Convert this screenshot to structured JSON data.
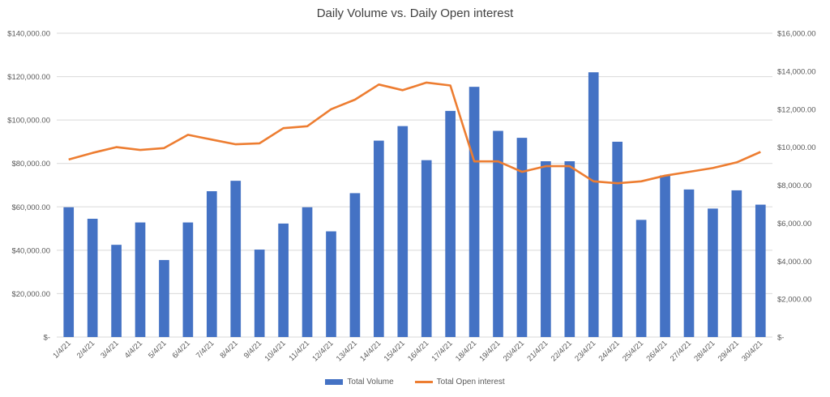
{
  "chart_data": {
    "type": "bar",
    "title": "Daily Volume vs. Daily Open interest",
    "categories": [
      "1/4/21",
      "2/4/21",
      "3/4/21",
      "4/4/21",
      "5/4/21",
      "6/4/21",
      "7/4/21",
      "8/4/21",
      "9/4/21",
      "10/4/21",
      "11/4/21",
      "12/4/21",
      "13/4/21",
      "14/4/21",
      "15/4/21",
      "16/4/21",
      "17/4/21",
      "18/4/21",
      "19/4/21",
      "20/4/21",
      "21/4/21",
      "22/4/21",
      "23/4/21",
      "24/4/21",
      "25/4/21",
      "26/4/21",
      "27/4/21",
      "28/4/21",
      "29/4/21",
      "30/4/21"
    ],
    "series": [
      {
        "name": "Total Volume",
        "type": "bar",
        "axis": "left",
        "color": "#4472C4",
        "values": [
          59800,
          54500,
          42500,
          52800,
          35500,
          52800,
          67200,
          72000,
          40300,
          52300,
          59800,
          48700,
          66300,
          90500,
          97200,
          81500,
          104200,
          115300,
          95000,
          91800,
          81000,
          81000,
          122000,
          90000,
          54000,
          74500,
          68000,
          59200,
          67600,
          61000
        ]
      },
      {
        "name": "Total Open interest",
        "type": "line",
        "axis": "right",
        "color": "#ED7D31",
        "values": [
          9350,
          9700,
          10000,
          9850,
          9950,
          10650,
          10400,
          10150,
          10200,
          11000,
          11100,
          12000,
          12500,
          13300,
          13000,
          13400,
          13250,
          9250,
          9250,
          8700,
          9000,
          9000,
          8200,
          8100,
          8200,
          8500,
          8700,
          8900,
          9200,
          9750
        ]
      }
    ],
    "y_left": {
      "ylim": [
        0,
        140000
      ],
      "tick_labels": [
        "$-",
        "$20,000.00",
        "$40,000.00",
        "$60,000.00",
        "$80,000.00",
        "$100,000.00",
        "$120,000.00",
        "$140,000.00"
      ],
      "tick_values": [
        0,
        20000,
        40000,
        60000,
        80000,
        100000,
        120000,
        140000
      ]
    },
    "y_right": {
      "ylim": [
        0,
        16000
      ],
      "tick_labels": [
        "$-",
        "$2,000.00",
        "$4,000.00",
        "$6,000.00",
        "$8,000.00",
        "$10,000.00",
        "$12,000.00",
        "$14,000.00",
        "$16,000.00"
      ],
      "tick_values": [
        0,
        2000,
        4000,
        6000,
        8000,
        10000,
        12000,
        14000,
        16000
      ]
    },
    "grid": true,
    "legend_position": "bottom"
  }
}
